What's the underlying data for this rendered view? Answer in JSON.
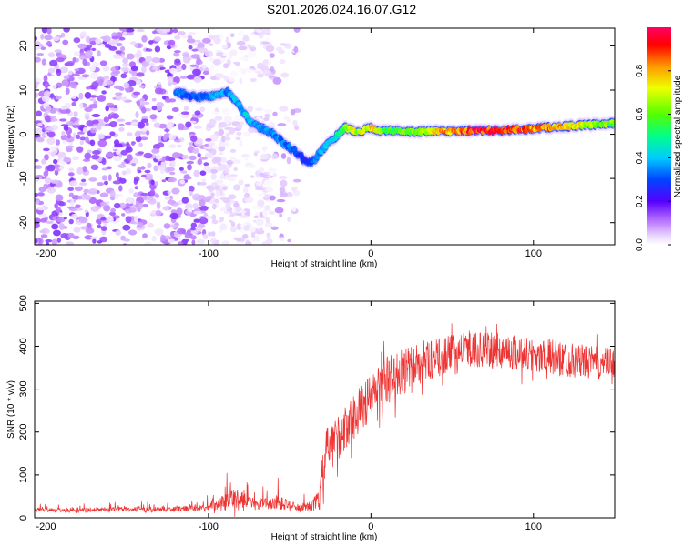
{
  "figure_title": "S201.2026.024.16.07.G12",
  "chart_data": [
    {
      "type": "heatmap",
      "title": "",
      "xlabel": "Height of straight line (km)",
      "ylabel": "Frequency (Hz)",
      "xlim": [
        -207,
        150
      ],
      "ylim": [
        -25,
        24
      ],
      "xticks": [
        -200,
        -100,
        0,
        100
      ],
      "xtick_labels": [
        "-200",
        "-100",
        "0",
        "100"
      ],
      "yticks": [
        20,
        10,
        0,
        -10,
        -20
      ],
      "ytick_labels": [
        "20",
        "10",
        "0",
        "-10",
        "-20"
      ],
      "colorbar": {
        "label": "Normalized spectral amplitude",
        "range": [
          0,
          1
        ],
        "ticks": [
          0.0,
          0.2,
          0.4,
          0.6,
          0.8
        ],
        "tick_labels": [
          "0.0",
          "0.2",
          "0.4",
          "0.6",
          "0.8"
        ],
        "colormap": [
          "#ffffff",
          "#d9b3ff",
          "#9900ff",
          "#3300ff",
          "#0066ff",
          "#00ccff",
          "#00ff66",
          "#99ff00",
          "#ffee00",
          "#ff8800",
          "#ff0000",
          "#ff0066"
        ]
      },
      "noise_region": {
        "x": [
          -207,
          -45
        ],
        "y": [
          -25,
          24
        ],
        "amplitude": [
          0.05,
          0.55
        ]
      },
      "ridge": {
        "x": [
          -120,
          -110,
          -100,
          -95,
          -88,
          -82,
          -75,
          -68,
          -60,
          -52,
          -46,
          -42,
          -38,
          -34,
          -30,
          -25,
          -20,
          -16,
          -12,
          -8,
          -4,
          0,
          5,
          10,
          20,
          30,
          40,
          50,
          60,
          70,
          80,
          90,
          100,
          110,
          120,
          130,
          140,
          150
        ],
        "y": [
          9.5,
          8.5,
          8.5,
          9.0,
          9.5,
          7.0,
          3.0,
          1.5,
          0.0,
          -2.5,
          -4.0,
          -5.5,
          -6.5,
          -5.5,
          -3.5,
          -1.5,
          0.0,
          1.5,
          1.0,
          0.5,
          1.0,
          1.5,
          0.8,
          0.8,
          0.7,
          0.6,
          0.7,
          0.7,
          0.8,
          0.8,
          0.9,
          1.0,
          1.3,
          1.6,
          1.8,
          2.0,
          2.2,
          2.5
        ],
        "amplitude": [
          0.35,
          0.3,
          0.35,
          0.4,
          0.35,
          0.4,
          0.4,
          0.35,
          0.35,
          0.35,
          0.3,
          0.25,
          0.3,
          0.35,
          0.4,
          0.45,
          0.5,
          0.6,
          0.7,
          0.65,
          0.7,
          0.75,
          0.7,
          0.55,
          0.6,
          0.65,
          0.75,
          0.85,
          0.9,
          0.95,
          0.95,
          0.9,
          0.85,
          0.85,
          0.8,
          0.7,
          0.65,
          0.6
        ]
      }
    },
    {
      "type": "line",
      "title": "",
      "xlabel": "Height of straight line (km)",
      "ylabel": "SNR (10 * v/v)",
      "xlim": [
        -207,
        150
      ],
      "ylim": [
        0,
        505
      ],
      "xticks": [
        -200,
        -100,
        0,
        100
      ],
      "xtick_labels": [
        "-200",
        "-100",
        "0",
        "100"
      ],
      "yticks": [
        0,
        100,
        200,
        300,
        400,
        500
      ],
      "ytick_labels": [
        "0",
        "100",
        "200",
        "300",
        "400",
        "500"
      ],
      "color": "#ee3333",
      "series": [
        {
          "name": "SNR",
          "x": [
            -207,
            -190,
            -170,
            -150,
            -130,
            -120,
            -110,
            -100,
            -95,
            -88,
            -82,
            -78,
            -72,
            -65,
            -58,
            -50,
            -42,
            -36,
            -32,
            -30,
            -28,
            -25,
            -20,
            -15,
            -10,
            -5,
            0,
            5,
            10,
            15,
            20,
            25,
            30,
            40,
            50,
            60,
            70,
            80,
            90,
            100,
            110,
            120,
            130,
            140,
            150
          ],
          "mean": [
            18,
            18,
            19,
            20,
            20,
            20,
            22,
            25,
            30,
            40,
            45,
            40,
            30,
            32,
            35,
            28,
            25,
            28,
            40,
            90,
            150,
            170,
            190,
            210,
            240,
            260,
            280,
            300,
            320,
            330,
            340,
            350,
            360,
            370,
            385,
            395,
            390,
            390,
            385,
            380,
            375,
            370,
            365,
            360,
            360
          ],
          "spread": [
            8,
            8,
            9,
            9,
            10,
            10,
            12,
            14,
            20,
            35,
            40,
            30,
            20,
            25,
            30,
            20,
            15,
            20,
            50,
            80,
            90,
            90,
            90,
            90,
            90,
            90,
            95,
            100,
            100,
            95,
            90,
            85,
            80,
            75,
            70,
            70,
            70,
            70,
            70,
            70,
            70,
            70,
            65,
            65,
            60
          ]
        }
      ]
    }
  ]
}
